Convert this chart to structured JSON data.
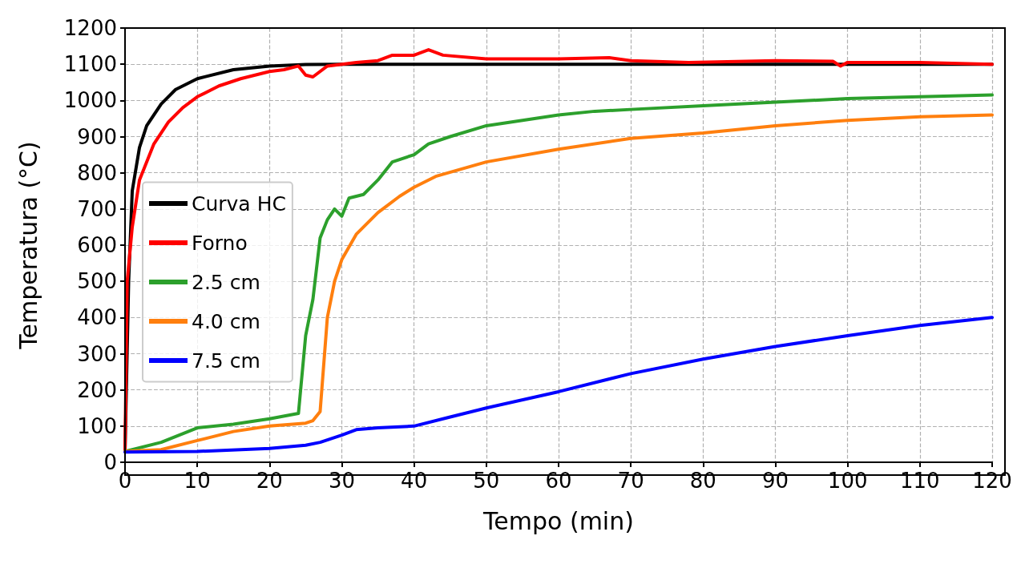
{
  "chart_data": {
    "type": "line",
    "xlabel": "Tempo (min)",
    "ylabel": "Temperatura (°C)",
    "xlim": [
      0,
      120
    ],
    "xticks": [
      0,
      10,
      20,
      30,
      40,
      50,
      60,
      70,
      80,
      90,
      100,
      110,
      120
    ],
    "ylim": [
      0,
      1200
    ],
    "yticks": [
      0,
      100,
      200,
      300,
      400,
      500,
      600,
      700,
      800,
      900,
      1000,
      1100,
      1200
    ],
    "grid": true,
    "legend": "left",
    "marker": "none",
    "line_style": "solid",
    "series": [
      {
        "name": "Curva HC",
        "color": "#000000",
        "x": [
          0,
          0.5,
          1,
          2,
          3,
          5,
          7,
          10,
          15,
          20,
          25,
          30,
          120
        ],
        "values": [
          30,
          500,
          750,
          870,
          930,
          990,
          1030,
          1060,
          1085,
          1095,
          1099,
          1100,
          1100
        ]
      },
      {
        "name": "Forno",
        "color": "#ff0000",
        "x": [
          0,
          0.3,
          1,
          2,
          4,
          6,
          8,
          10,
          13,
          16,
          20,
          22,
          24,
          25,
          26,
          28,
          30,
          32,
          35,
          37,
          40,
          42,
          44,
          50,
          60,
          67,
          70,
          78,
          90,
          98,
          99,
          100,
          110,
          120
        ],
        "values": [
          30,
          500,
          650,
          780,
          880,
          940,
          980,
          1010,
          1040,
          1060,
          1080,
          1085,
          1095,
          1070,
          1065,
          1095,
          1100,
          1105,
          1110,
          1125,
          1125,
          1140,
          1125,
          1115,
          1115,
          1118,
          1110,
          1105,
          1110,
          1108,
          1095,
          1105,
          1105,
          1100
        ]
      },
      {
        "name": "2.5 cm",
        "color": "#2ca02c",
        "x": [
          0,
          5,
          10,
          15,
          20,
          24,
          25,
          26,
          27,
          28,
          29,
          30,
          31,
          33,
          35,
          37,
          40,
          42,
          45,
          50,
          55,
          60,
          65,
          70,
          80,
          90,
          100,
          110,
          120
        ],
        "values": [
          30,
          55,
          95,
          105,
          120,
          135,
          350,
          450,
          620,
          670,
          700,
          680,
          730,
          740,
          780,
          830,
          850,
          880,
          900,
          930,
          945,
          960,
          970,
          975,
          985,
          995,
          1005,
          1010,
          1015
        ]
      },
      {
        "name": "4.0 cm",
        "color": "#ff7f0e",
        "x": [
          0,
          5,
          10,
          15,
          20,
          25,
          26,
          27,
          28,
          29,
          30,
          32,
          35,
          38,
          40,
          43,
          50,
          60,
          70,
          80,
          90,
          100,
          110,
          120
        ],
        "values": [
          30,
          35,
          60,
          85,
          100,
          108,
          115,
          140,
          400,
          500,
          560,
          630,
          690,
          735,
          760,
          790,
          830,
          865,
          895,
          910,
          930,
          945,
          955,
          960
        ]
      },
      {
        "name": "7.5 cm",
        "color": "#0000ff",
        "x": [
          0,
          10,
          20,
          25,
          27,
          30,
          32,
          35,
          40,
          45,
          50,
          60,
          70,
          80,
          90,
          100,
          110,
          120
        ],
        "values": [
          28,
          30,
          38,
          47,
          55,
          75,
          90,
          95,
          100,
          125,
          150,
          195,
          245,
          285,
          320,
          350,
          378,
          400
        ]
      }
    ]
  }
}
